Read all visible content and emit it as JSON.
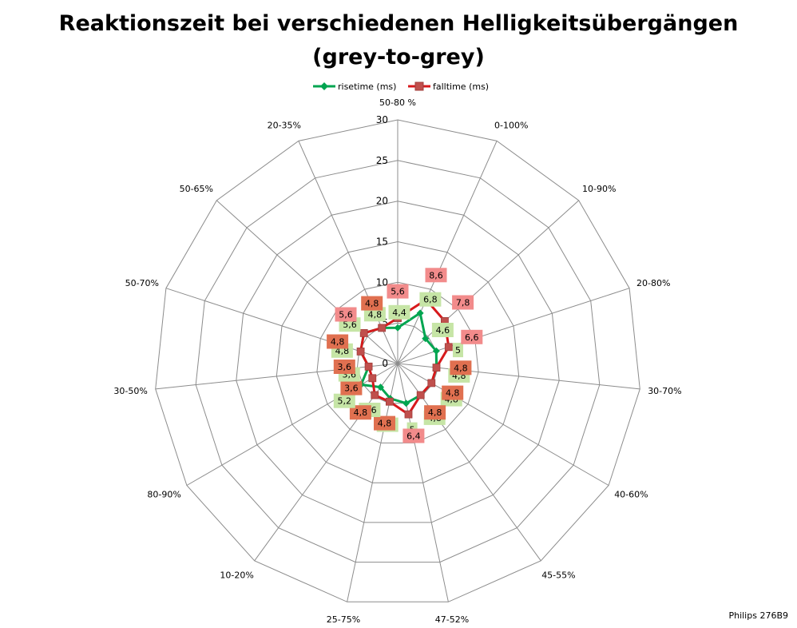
{
  "chart_data": {
    "type": "radar",
    "title_line1": "Reaktionszeit bei verschiedenen Helligkeitsübergängen",
    "title_line2": "(grey-to-grey)",
    "categories": [
      "50-80 %",
      "0-100%",
      "10-90%",
      "20-80%",
      "30-70%",
      "40-60%",
      "45-55%",
      "47-52%",
      "25-75%",
      "10-20%",
      "80-90%",
      "30-50%",
      "50-70%",
      "50-65%",
      "20-35%"
    ],
    "radial_axis": {
      "min": 0,
      "max": 30,
      "step": 5,
      "ticks": [
        "0",
        "5",
        "10",
        "15",
        "20",
        "25",
        "30"
      ]
    },
    "series": [
      {
        "name": "risetime (ms)",
        "color": "#00a550",
        "marker": "diamond",
        "values": [
          4.4,
          6.8,
          4.6,
          5,
          4.8,
          4.8,
          4.8,
          5,
          4.4,
          3.6,
          5.2,
          3.6,
          4.8,
          5.6,
          4.8
        ],
        "labels": [
          "4,4",
          "6,8",
          "4,6",
          "5",
          "4,8",
          "4,8",
          "4,8",
          "5",
          "4,4",
          "3,6",
          "5,2",
          "3,6",
          "4,8",
          "5,6",
          "4,8"
        ],
        "label_bg": "#c6e5a6"
      },
      {
        "name": "falltime (ms)",
        "color": "#d7191c",
        "marker": "square",
        "values": [
          5.6,
          8.6,
          7.8,
          6.6,
          4.8,
          4.8,
          4.8,
          6.4,
          4.8,
          4.8,
          3.6,
          3.6,
          4.8,
          5.6,
          4.8
        ],
        "labels": [
          "5,6",
          "8,6",
          "7,8",
          "6,6",
          "4,8",
          "4,8",
          "4,8",
          "6,4",
          "4,8",
          "4,8",
          "3,6",
          "3,6",
          "4,8",
          "5,6",
          "4,8"
        ],
        "label_bg_high": "#f28b8b",
        "label_bg_low": "#e07050"
      }
    ],
    "legend_position": "top",
    "credit": "Philips 276B9",
    "grid": true
  }
}
